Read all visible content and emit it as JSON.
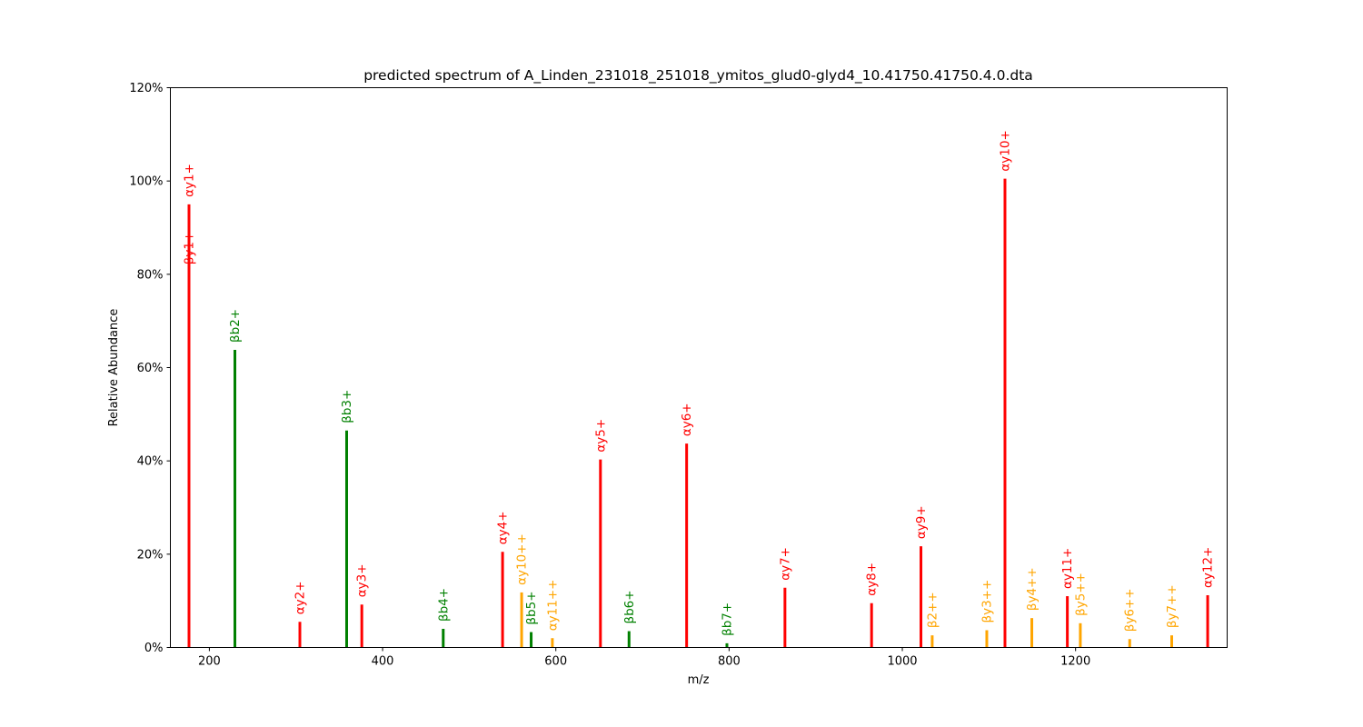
{
  "chart_data": {
    "type": "bar",
    "title": "predicted spectrum of A_Linden_231018_251018_ymitos_glud0-glyd4_10.41750.41750.4.0.dta",
    "xlabel": "m/z",
    "ylabel": "Relative Abundance",
    "xlim": [
      155,
      1375
    ],
    "ylim": [
      0,
      120
    ],
    "x_ticks": [
      200,
      400,
      600,
      800,
      1000,
      1200
    ],
    "y_ticks": [
      0,
      20,
      40,
      60,
      80,
      100,
      120
    ],
    "y_tick_labels": [
      "0%",
      "20%",
      "40%",
      "60%",
      "80%",
      "100%",
      "120%"
    ],
    "grid": false,
    "colors": {
      "red": "#ff0000",
      "green": "#008000",
      "orange": "#ffa500"
    },
    "peaks": [
      {
        "mz": 176.5,
        "intensity": 95.0,
        "label": "αy1+",
        "color": "red"
      },
      {
        "mz": 176.5,
        "intensity": 80.5,
        "label": "βy1+",
        "color": "red",
        "label_only": true
      },
      {
        "mz": 229.5,
        "intensity": 63.8,
        "label": "βb2+",
        "color": "green"
      },
      {
        "mz": 304.5,
        "intensity": 5.5,
        "label": "αy2+",
        "color": "red"
      },
      {
        "mz": 358.5,
        "intensity": 46.5,
        "label": "βb3+",
        "color": "green"
      },
      {
        "mz": 376.0,
        "intensity": 9.2,
        "label": "αy3+",
        "color": "red"
      },
      {
        "mz": 470.0,
        "intensity": 4.0,
        "label": "βb4+",
        "color": "green"
      },
      {
        "mz": 538.5,
        "intensity": 20.5,
        "label": "αy4+",
        "color": "red"
      },
      {
        "mz": 560.5,
        "intensity": 11.8,
        "label": "αy10++",
        "color": "orange"
      },
      {
        "mz": 571.5,
        "intensity": 3.3,
        "label": "βb5+",
        "color": "green"
      },
      {
        "mz": 596.0,
        "intensity": 2.0,
        "label": "αy11++",
        "color": "orange"
      },
      {
        "mz": 651.5,
        "intensity": 40.3,
        "label": "αy5+",
        "color": "red"
      },
      {
        "mz": 684.5,
        "intensity": 3.5,
        "label": "βb6+",
        "color": "green"
      },
      {
        "mz": 751.0,
        "intensity": 43.7,
        "label": "αy6+",
        "color": "red"
      },
      {
        "mz": 797.5,
        "intensity": 0.9,
        "label": "βb7+",
        "color": "green"
      },
      {
        "mz": 864.5,
        "intensity": 12.8,
        "label": "αy7+",
        "color": "red"
      },
      {
        "mz": 964.5,
        "intensity": 9.5,
        "label": "αy8+",
        "color": "red"
      },
      {
        "mz": 1021.5,
        "intensity": 21.7,
        "label": "αy9+",
        "color": "red"
      },
      {
        "mz": 1034.5,
        "intensity": 2.6,
        "label": "β2++",
        "color": "orange"
      },
      {
        "mz": 1097.5,
        "intensity": 3.7,
        "label": "βy3++",
        "color": "orange"
      },
      {
        "mz": 1118.5,
        "intensity": 100.5,
        "label": "αy10+",
        "color": "red"
      },
      {
        "mz": 1149.5,
        "intensity": 6.3,
        "label": "βy4++",
        "color": "orange"
      },
      {
        "mz": 1190.5,
        "intensity": 11.0,
        "label": "αy11+",
        "color": "red"
      },
      {
        "mz": 1205.5,
        "intensity": 5.2,
        "label": "βy5++",
        "color": "orange"
      },
      {
        "mz": 1262.5,
        "intensity": 1.8,
        "label": "βy6++",
        "color": "orange"
      },
      {
        "mz": 1311.0,
        "intensity": 2.6,
        "label": "βy7++",
        "color": "orange"
      },
      {
        "mz": 1352.5,
        "intensity": 11.2,
        "label": "αy12+",
        "color": "red"
      }
    ]
  }
}
